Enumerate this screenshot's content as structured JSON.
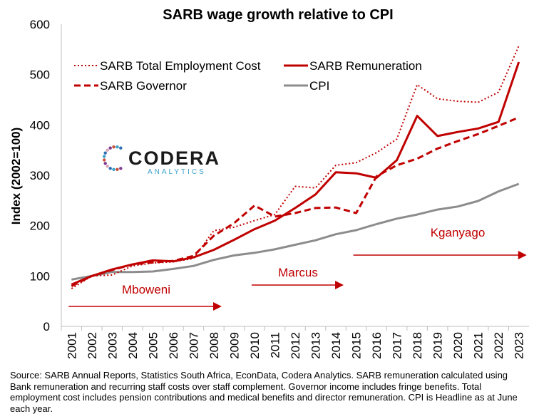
{
  "chart_data": {
    "type": "line",
    "title": "SARB wage growth relative to CPI",
    "ylabel": "Index (2002=100)",
    "xlabel": "",
    "ylim": [
      0,
      600
    ],
    "yticks": [
      0,
      100,
      200,
      300,
      400,
      500,
      600
    ],
    "grid": false,
    "legend_position": "top-left",
    "x": [
      "2001",
      "2002",
      "2003",
      "2004",
      "2005",
      "2006",
      "2007",
      "2008",
      "2009",
      "2010",
      "2011",
      "2012",
      "2013",
      "2014",
      "2015",
      "2016",
      "2017",
      "2018",
      "2019",
      "2020",
      "2021",
      "2022",
      "2023"
    ],
    "series": [
      {
        "name": "SARB Total Employment Cost",
        "style": "dotted",
        "color": "#c00000",
        "values": [
          75,
          100,
          102,
          120,
          126,
          128,
          135,
          190,
          197,
          210,
          222,
          278,
          275,
          320,
          325,
          345,
          372,
          480,
          452,
          447,
          445,
          465,
          557
        ]
      },
      {
        "name": "SARB Remuneration",
        "style": "solid",
        "color": "#c00000",
        "values": [
          83,
          100,
          113,
          123,
          131,
          129,
          137,
          152,
          172,
          193,
          210,
          235,
          262,
          306,
          304,
          295,
          330,
          418,
          378,
          386,
          393,
          406,
          525
        ]
      },
      {
        "name": "SARB Governor",
        "style": "dashed",
        "color": "#c00000",
        "values": [
          80,
          100,
          112,
          123,
          127,
          130,
          140,
          180,
          205,
          240,
          218,
          225,
          235,
          236,
          225,
          298,
          320,
          333,
          353,
          368,
          382,
          398,
          415
        ]
      },
      {
        "name": "CPI",
        "style": "solid",
        "color": "#8c8c8c",
        "values": [
          93,
          100,
          108,
          108,
          109,
          114,
          120,
          132,
          141,
          146,
          153,
          162,
          171,
          183,
          191,
          203,
          214,
          222,
          232,
          238,
          249,
          268,
          283
        ]
      }
    ],
    "annotations": [
      {
        "label": "Mboweni",
        "from": 2001,
        "to": 2008
      },
      {
        "label": "Marcus",
        "from": 2010,
        "to": 2014
      },
      {
        "label": "Kganyago",
        "from": 2015,
        "to": 2023
      }
    ]
  },
  "logo": {
    "name": "CODERA",
    "sub": "ANALYTICS"
  },
  "source_note": "Source: SARB Annual Reports, Statistics South Africa, EconData, Codera Analytics. SARB remuneration calculated using Bank remuneration and recurring staff costs over staff complement. Governor income includes fringe benefits. Total employment cost includes pension contributions and medical benefits and director remuneration. CPI is Headline as at June each year."
}
